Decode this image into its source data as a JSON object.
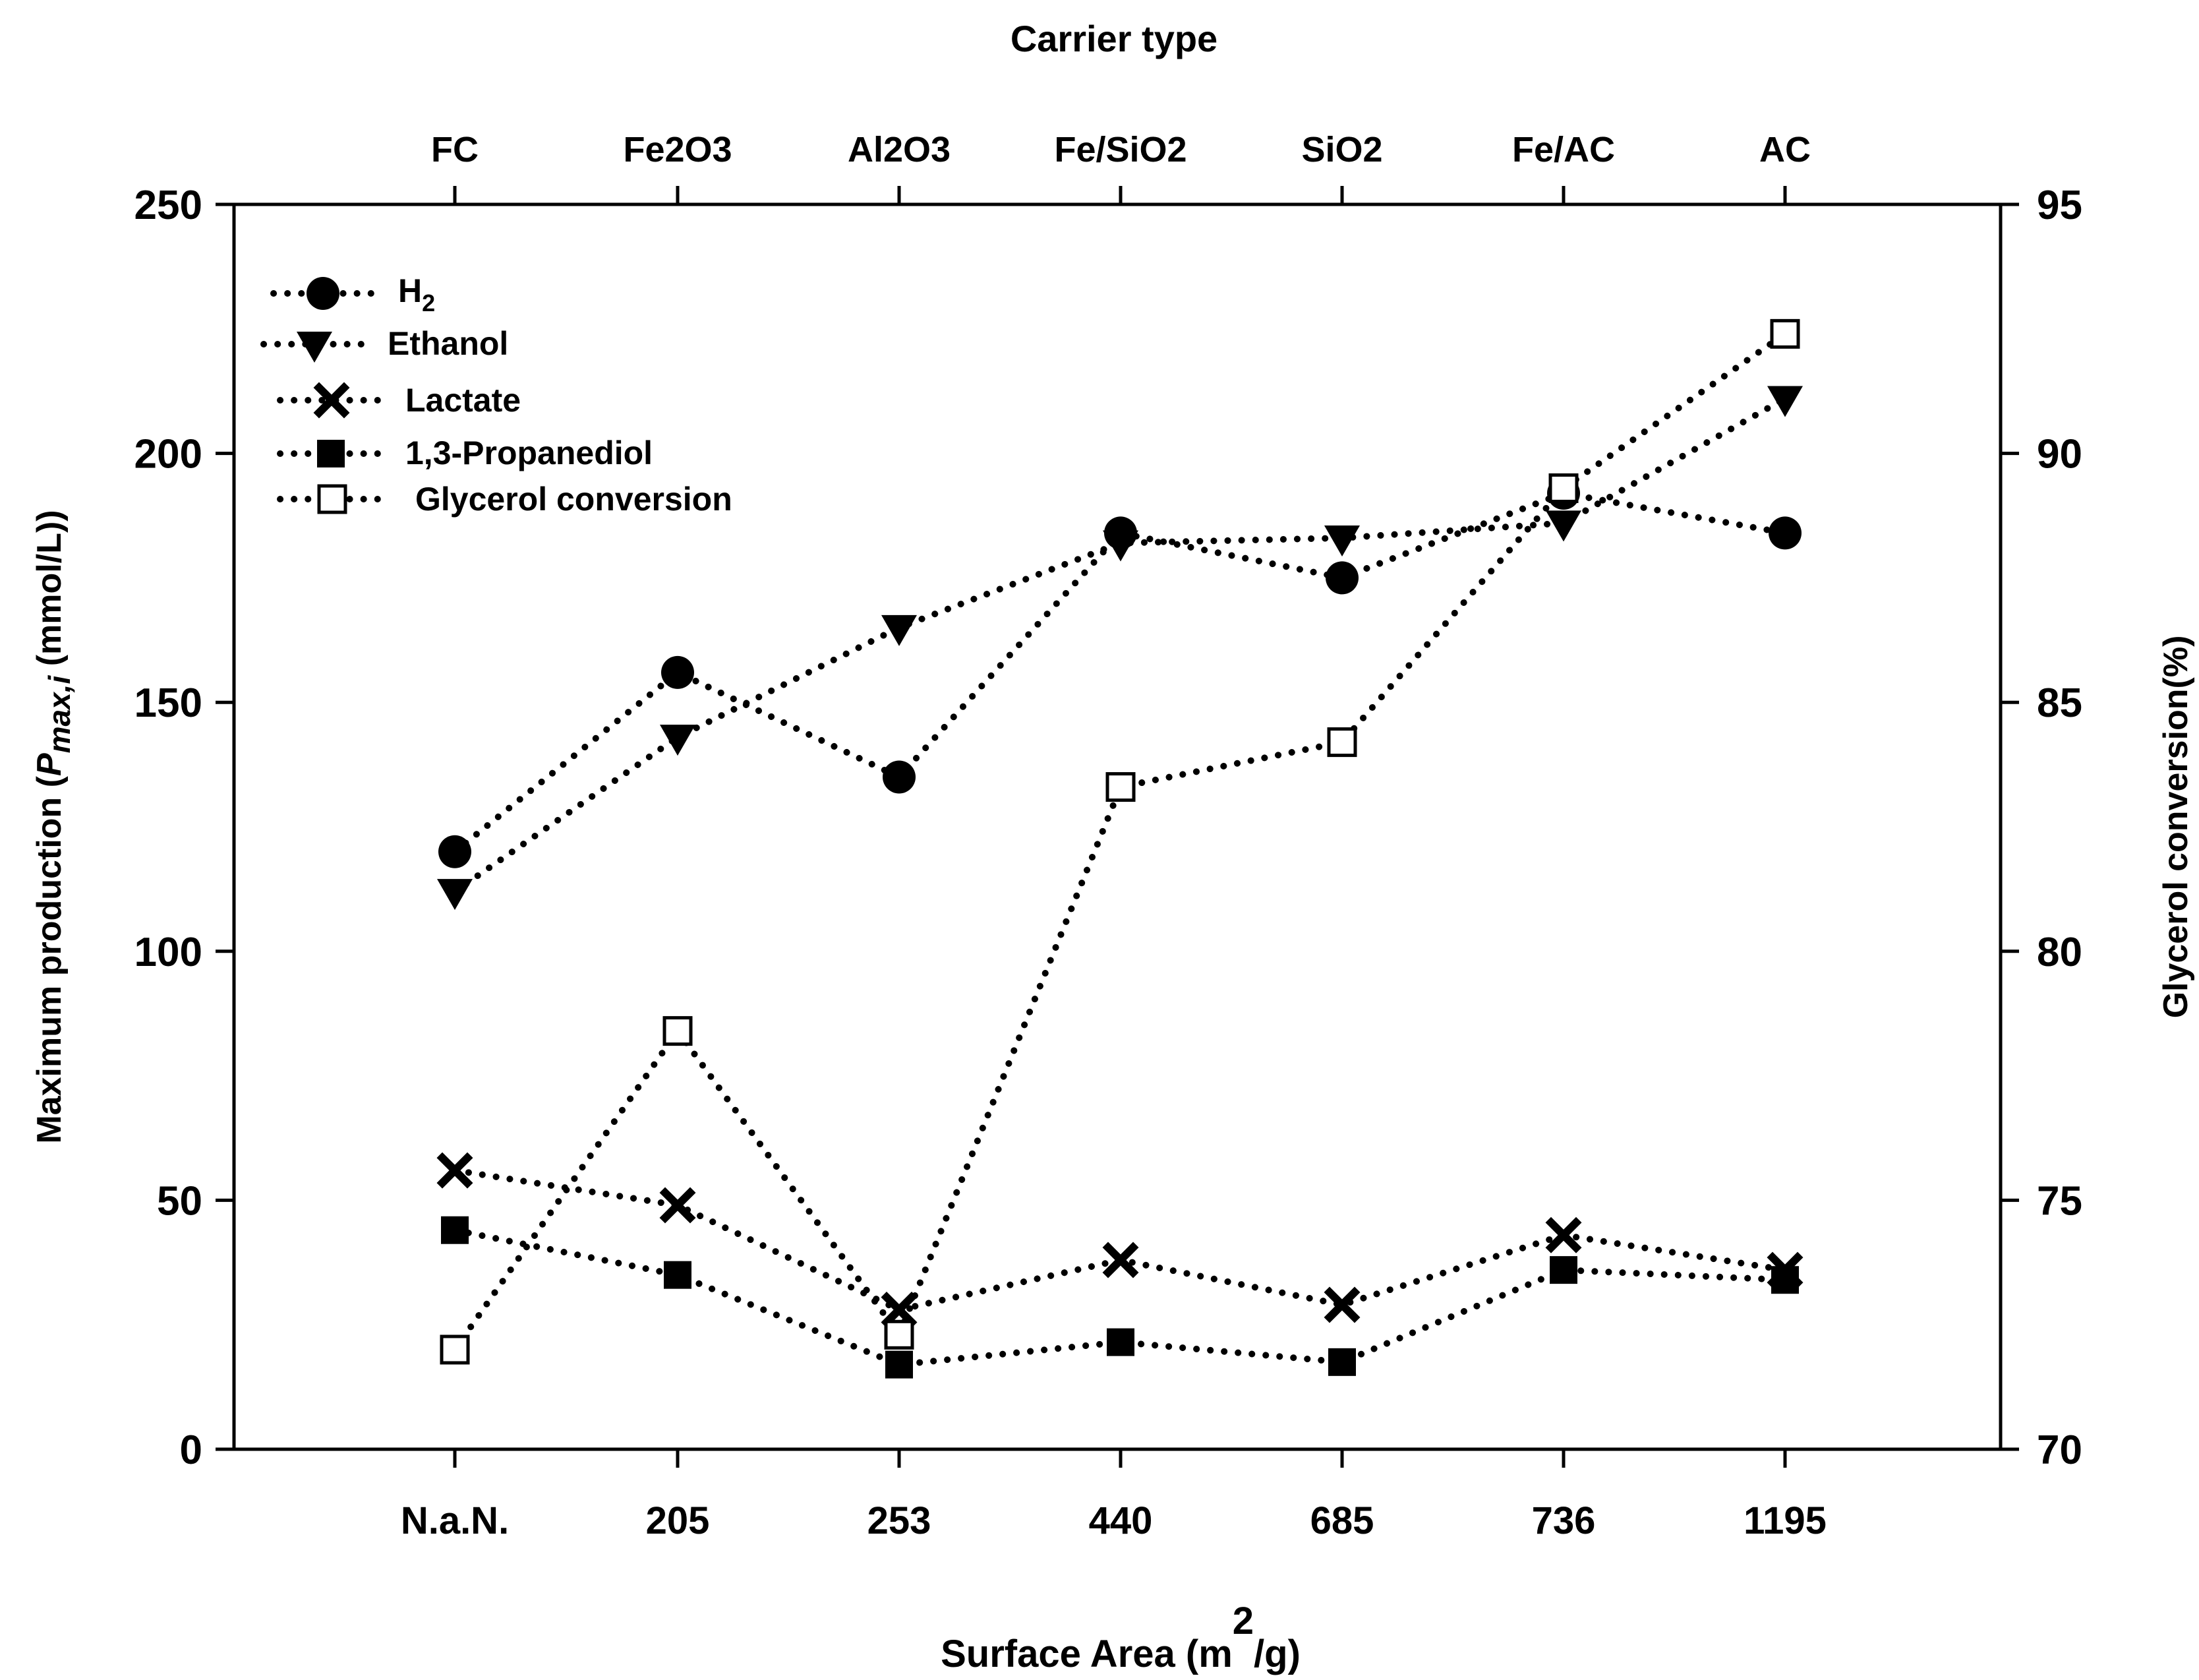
{
  "chart_data": {
    "type": "line",
    "title": "",
    "top_axis": {
      "title": "Carrier type",
      "categories": [
        "FC",
        "Fe2O3",
        "Al2O3",
        "Fe/SiO2",
        "SiO2",
        "Fe/AC",
        "AC"
      ]
    },
    "x_axis": {
      "title_parts": {
        "main": "Surface Area  (m",
        "superscript": "2",
        "tail": "/g)"
      },
      "categories": [
        "N.a.N.",
        "205",
        "253",
        "440",
        "685",
        "736",
        "1195"
      ]
    },
    "y_axis_left": {
      "title_parts": {
        "main": "Maximum production (",
        "italic": "P",
        "subscript": "max,i",
        "tail": " (mmol/L))"
      },
      "ylim": [
        0,
        250
      ],
      "ticks": [
        "0",
        "50",
        "100",
        "150",
        "200",
        "250"
      ]
    },
    "y_axis_right": {
      "title": "Glycerol conversion(%)",
      "ylim": [
        70,
        95
      ],
      "ticks": [
        "70",
        "75",
        "80",
        "85",
        "90",
        "95"
      ]
    },
    "series": [
      {
        "name": "H2",
        "label_main": "H",
        "label_sub": "2",
        "marker": "circle-filled",
        "axis": "left",
        "values": [
          120,
          156,
          135,
          184,
          175,
          192,
          184
        ]
      },
      {
        "name": "Ethanol",
        "label_main": "Ethanol",
        "marker": "triangle-down-filled",
        "axis": "left",
        "values": [
          112,
          143,
          165,
          182,
          183,
          186,
          211
        ]
      },
      {
        "name": "Lactate",
        "label_main": "Lactate",
        "marker": "x",
        "axis": "left",
        "values": [
          56,
          49,
          28,
          38,
          29,
          43,
          36
        ]
      },
      {
        "name": "1,3-Propanediol",
        "label_main": "1,3-Propanediol",
        "marker": "square-filled",
        "axis": "left",
        "values": [
          44,
          35,
          17,
          21.5,
          17.5,
          36,
          34
        ]
      },
      {
        "name": "Glycerol conversion",
        "label_main": "Glycerol conversion",
        "marker": "square-open",
        "axis": "right",
        "values": [
          72,
          78.4,
          72.3,
          83.3,
          84.2,
          89.3,
          92.4
        ]
      }
    ],
    "legend_position": "top-left",
    "grid": false
  },
  "colors": {
    "ink": "#000000",
    "background": "#ffffff"
  }
}
